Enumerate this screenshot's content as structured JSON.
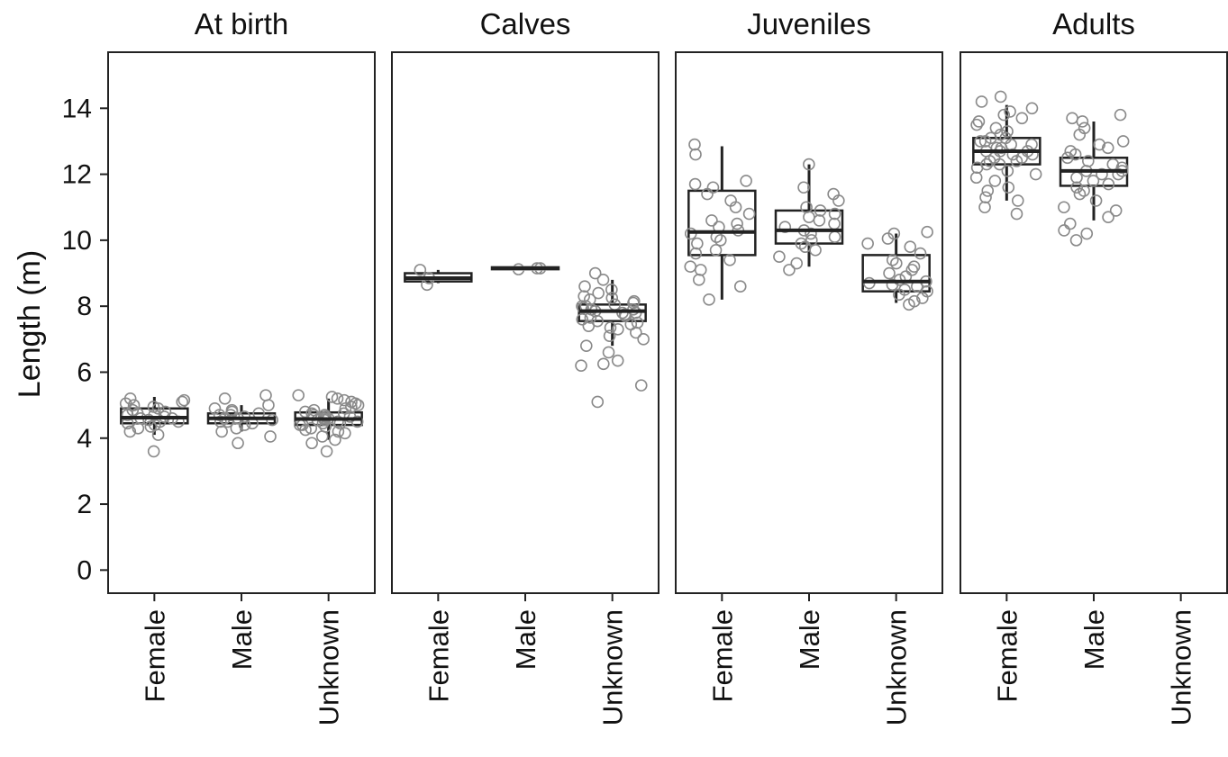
{
  "chart_data": {
    "type": "boxplot",
    "ylabel": "Length (m)",
    "ylim": [
      -0.7,
      15.7
    ],
    "yticks": [
      0,
      2,
      4,
      6,
      8,
      10,
      12,
      14
    ],
    "categories": [
      "Female",
      "Male",
      "Unknown"
    ],
    "grid": false,
    "point_color": "#8a8a8a",
    "box_color": "#222222",
    "panels": [
      {
        "title": "At birth",
        "groups": [
          {
            "category": "Female",
            "box": {
              "q1": 4.45,
              "median": 4.62,
              "q3": 4.9,
              "whisker_low": 4.1,
              "whisker_high": 5.25
            },
            "points": [
              3.6,
              4.1,
              4.2,
              4.3,
              4.35,
              4.4,
              4.45,
              4.5,
              4.5,
              4.55,
              4.6,
              4.6,
              4.65,
              4.7,
              4.7,
              4.75,
              4.8,
              4.85,
              4.9,
              4.95,
              5.0,
              5.05,
              5.1,
              5.15,
              5.2
            ]
          },
          {
            "category": "Male",
            "box": {
              "q1": 4.45,
              "median": 4.6,
              "q3": 4.75,
              "whisker_low": 4.2,
              "whisker_high": 5.0
            },
            "points": [
              3.85,
              4.05,
              4.2,
              4.3,
              4.4,
              4.45,
              4.5,
              4.5,
              4.55,
              4.6,
              4.6,
              4.65,
              4.7,
              4.7,
              4.75,
              4.8,
              4.85,
              4.9,
              5.0,
              5.2,
              5.3
            ]
          },
          {
            "category": "Unknown",
            "box": {
              "q1": 4.4,
              "median": 4.58,
              "q3": 4.78,
              "whisker_low": 3.95,
              "whisker_high": 5.2
            },
            "points": [
              3.6,
              3.85,
              3.95,
              4.05,
              4.15,
              4.2,
              4.25,
              4.3,
              4.35,
              4.4,
              4.4,
              4.45,
              4.45,
              4.5,
              4.5,
              4.55,
              4.55,
              4.6,
              4.6,
              4.65,
              4.65,
              4.7,
              4.7,
              4.75,
              4.75,
              4.8,
              4.85,
              4.9,
              4.95,
              5.0,
              5.05,
              5.1,
              5.15,
              5.2,
              5.25,
              5.3
            ]
          }
        ]
      },
      {
        "title": "Calves",
        "groups": [
          {
            "category": "Female",
            "box": {
              "q1": 8.75,
              "median": 8.85,
              "q3": 9.0,
              "whisker_low": 8.7,
              "whisker_high": 9.1
            },
            "points": [
              8.65,
              8.85,
              9.1
            ]
          },
          {
            "category": "Male",
            "box": {
              "q1": 9.12,
              "median": 9.15,
              "q3": 9.18,
              "whisker_low": 9.1,
              "whisker_high": 9.2
            },
            "points": [
              9.12,
              9.15,
              9.15
            ]
          },
          {
            "category": "Unknown",
            "box": {
              "q1": 7.55,
              "median": 7.85,
              "q3": 8.05,
              "whisker_low": 6.8,
              "whisker_high": 8.8
            },
            "points": [
              5.1,
              5.6,
              6.2,
              6.25,
              6.35,
              6.6,
              6.8,
              7.0,
              7.1,
              7.2,
              7.3,
              7.35,
              7.4,
              7.45,
              7.5,
              7.55,
              7.6,
              7.65,
              7.7,
              7.75,
              7.8,
              7.8,
              7.85,
              7.9,
              7.9,
              7.95,
              8.0,
              8.0,
              8.05,
              8.1,
              8.15,
              8.2,
              8.25,
              8.3,
              8.4,
              8.5,
              8.6,
              8.8,
              9.0
            ]
          }
        ]
      },
      {
        "title": "Juveniles",
        "groups": [
          {
            "category": "Female",
            "box": {
              "q1": 9.55,
              "median": 10.25,
              "q3": 11.5,
              "whisker_low": 8.2,
              "whisker_high": 12.85
            },
            "points": [
              8.2,
              8.6,
              8.8,
              9.1,
              9.2,
              9.4,
              9.6,
              9.7,
              9.9,
              10.0,
              10.1,
              10.2,
              10.3,
              10.4,
              10.5,
              10.6,
              10.8,
              11.0,
              11.2,
              11.4,
              11.6,
              11.7,
              11.8,
              12.6,
              12.9
            ]
          },
          {
            "category": "Male",
            "box": {
              "q1": 9.9,
              "median": 10.3,
              "q3": 10.9,
              "whisker_low": 9.2,
              "whisker_high": 12.3
            },
            "points": [
              9.1,
              9.3,
              9.5,
              9.7,
              9.8,
              9.9,
              10.0,
              10.1,
              10.2,
              10.3,
              10.4,
              10.5,
              10.6,
              10.7,
              10.8,
              10.9,
              11.0,
              11.2,
              11.4,
              11.6,
              12.3
            ]
          },
          {
            "category": "Unknown",
            "box": {
              "q1": 8.45,
              "median": 8.75,
              "q3": 9.55,
              "whisker_low": 8.1,
              "whisker_high": 10.2
            },
            "points": [
              8.05,
              8.15,
              8.25,
              8.35,
              8.45,
              8.5,
              8.6,
              8.65,
              8.7,
              8.75,
              8.8,
              8.9,
              9.0,
              9.1,
              9.2,
              9.3,
              9.4,
              9.6,
              9.8,
              9.9,
              10.05,
              10.2,
              10.25
            ]
          }
        ]
      },
      {
        "title": "Adults",
        "groups": [
          {
            "category": "Female",
            "box": {
              "q1": 12.3,
              "median": 12.7,
              "q3": 13.1,
              "whisker_low": 11.2,
              "whisker_high": 14.1
            },
            "points": [
              10.8,
              11.0,
              11.2,
              11.3,
              11.5,
              11.6,
              11.8,
              11.9,
              12.0,
              12.1,
              12.2,
              12.3,
              12.3,
              12.4,
              12.4,
              12.5,
              12.5,
              12.6,
              12.6,
              12.7,
              12.7,
              12.7,
              12.8,
              12.8,
              12.9,
              12.9,
              13.0,
              13.0,
              13.1,
              13.1,
              13.2,
              13.3,
              13.4,
              13.5,
              13.6,
              13.7,
              13.8,
              13.9,
              14.0,
              14.2,
              14.35
            ]
          },
          {
            "category": "Male",
            "box": {
              "q1": 11.65,
              "median": 12.1,
              "q3": 12.5,
              "whisker_low": 10.6,
              "whisker_high": 13.6
            },
            "points": [
              10.0,
              10.2,
              10.3,
              10.5,
              10.7,
              10.9,
              11.0,
              11.2,
              11.4,
              11.5,
              11.6,
              11.7,
              11.8,
              11.9,
              12.0,
              12.0,
              12.1,
              12.1,
              12.2,
              12.3,
              12.4,
              12.5,
              12.6,
              12.7,
              12.8,
              12.9,
              13.0,
              13.2,
              13.4,
              13.6,
              13.7,
              13.8
            ]
          },
          {
            "category": "Unknown",
            "box": null,
            "points": []
          }
        ]
      }
    ]
  }
}
